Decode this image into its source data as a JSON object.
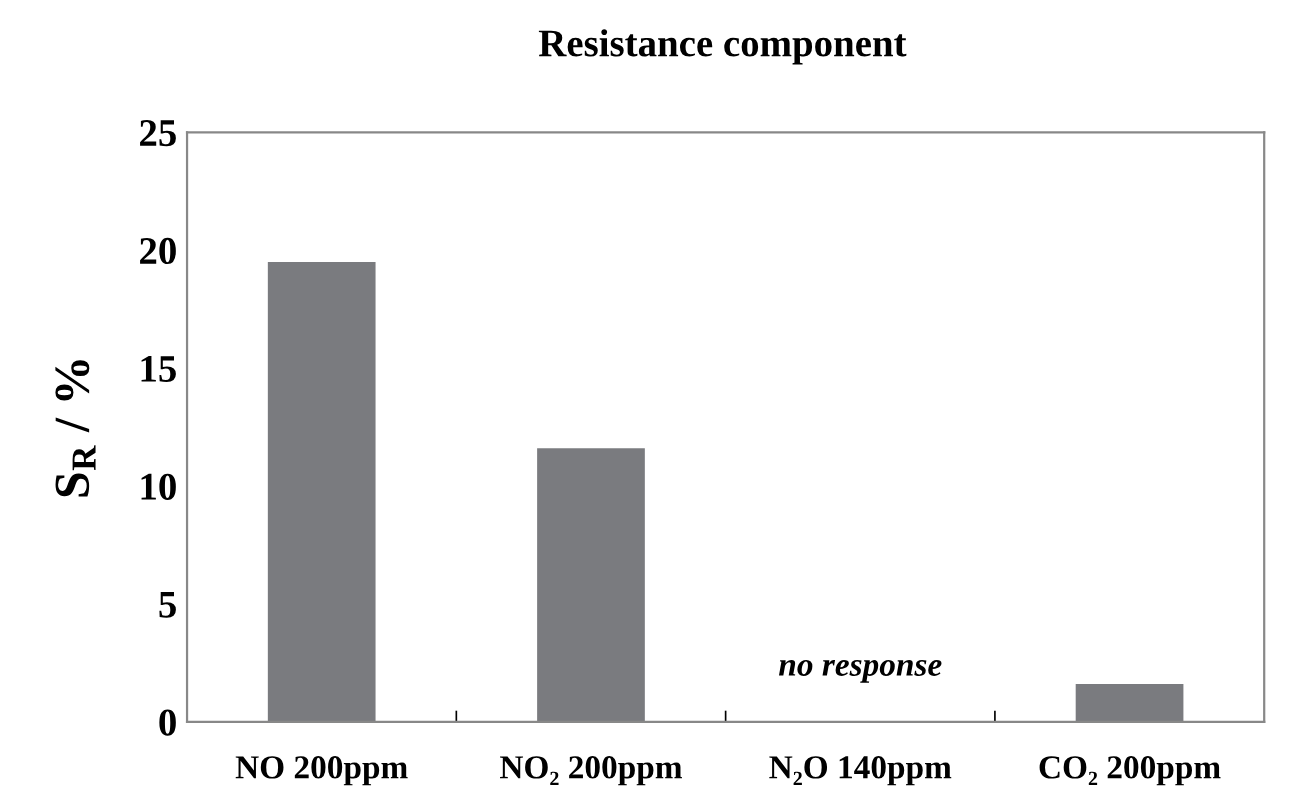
{
  "chart_data": {
    "type": "bar",
    "title": "Resistance component",
    "ylabel": "S$_{R}$ / %",
    "categories": [
      "NO 200ppm",
      "NO₂ 200ppm",
      "N₂O 140ppm",
      "CO₂ 200ppm"
    ],
    "values": [
      19.5,
      11.6,
      0,
      1.6
    ],
    "color": "#7a7b7f",
    "ylim": [
      0,
      25
    ],
    "yticks": [
      0,
      5,
      10,
      15,
      20,
      25
    ],
    "grid": false,
    "annotations": [
      "no response"
    ]
  }
}
